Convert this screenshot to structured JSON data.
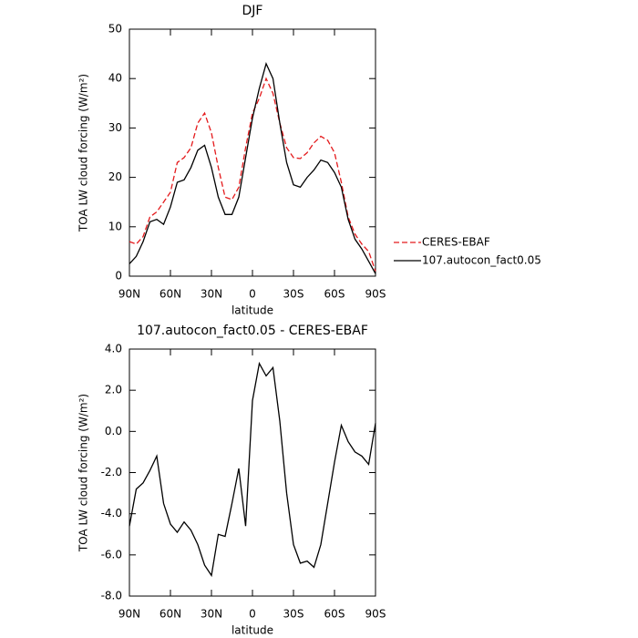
{
  "chart_data": [
    {
      "type": "line",
      "title": "DJF",
      "xlabel": "latitude",
      "ylabel": "TOA LW cloud forcing (W/m²)",
      "x": [
        90,
        85,
        80,
        75,
        70,
        65,
        60,
        55,
        50,
        45,
        40,
        35,
        30,
        25,
        20,
        15,
        10,
        5,
        0,
        -5,
        -10,
        -15,
        -20,
        -25,
        -30,
        -35,
        -40,
        -45,
        -50,
        -55,
        -60,
        -65,
        -70,
        -75,
        -80,
        -85,
        -90
      ],
      "xlim": [
        90,
        -90
      ],
      "xticks": [
        {
          "value": 90,
          "label": "90N"
        },
        {
          "value": 60,
          "label": "60N"
        },
        {
          "value": 30,
          "label": "30N"
        },
        0,
        {
          "value": -30,
          "label": "30S"
        },
        {
          "value": -60,
          "label": "60S"
        },
        {
          "value": -90,
          "label": "90S"
        }
      ],
      "ylim": [
        0,
        50
      ],
      "yticks": [
        0,
        10,
        20,
        30,
        40,
        50
      ],
      "legend": "right",
      "series": [
        {
          "name": "CERES-EBAF",
          "color": "#e41a1c",
          "dash": true,
          "values": [
            7,
            6.5,
            8,
            12,
            13,
            15,
            17,
            23,
            24,
            26,
            31,
            33,
            29,
            22,
            16,
            15.5,
            18,
            26,
            33,
            36,
            40,
            37,
            31,
            26,
            24,
            23.8,
            25,
            27,
            28.3,
            27.5,
            25,
            19,
            12,
            8.5,
            6.5,
            5,
            1
          ]
        },
        {
          "name": "107.autocon_fact0.05",
          "color": "#000000",
          "dash": false,
          "values": [
            2.5,
            4,
            7,
            11,
            11.5,
            10.5,
            14,
            19,
            19.5,
            22,
            25.5,
            26.5,
            22,
            16,
            12.5,
            12.5,
            16,
            24,
            32,
            38,
            43,
            40,
            31,
            23,
            18.5,
            18,
            20,
            21.5,
            23.5,
            23,
            21,
            18,
            11.5,
            7.5,
            5.5,
            3,
            0.5
          ]
        }
      ]
    },
    {
      "type": "line",
      "title": "107.autocon_fact0.05 - CERES-EBAF",
      "xlabel": "latitude",
      "ylabel": "TOA LW cloud forcing (W/m²)",
      "x": [
        90,
        85,
        80,
        75,
        70,
        65,
        60,
        55,
        50,
        45,
        40,
        35,
        30,
        25,
        20,
        15,
        10,
        5,
        0,
        -5,
        -10,
        -15,
        -20,
        -25,
        -30,
        -35,
        -40,
        -45,
        -50,
        -55,
        -60,
        -65,
        -70,
        -75,
        -80,
        -85,
        -90
      ],
      "xlim": [
        90,
        -90
      ],
      "xticks": [
        {
          "value": 90,
          "label": "90N"
        },
        {
          "value": 60,
          "label": "60N"
        },
        {
          "value": 30,
          "label": "30N"
        },
        0,
        {
          "value": -30,
          "label": "30S"
        },
        {
          "value": -60,
          "label": "60S"
        },
        {
          "value": -90,
          "label": "90S"
        }
      ],
      "ylim": [
        -8,
        4
      ],
      "yticks": [
        {
          "value": -8,
          "label": "-8.0"
        },
        {
          "value": -6,
          "label": "-6.0"
        },
        {
          "value": -4,
          "label": "-4.0"
        },
        {
          "value": -2,
          "label": "-2.0"
        },
        {
          "value": 0,
          "label": "0.0"
        },
        {
          "value": 2,
          "label": "2.0"
        },
        {
          "value": 4,
          "label": "4.0"
        }
      ],
      "color": "#000000",
      "values": [
        -4.6,
        -2.8,
        -2.5,
        -1.9,
        -1.2,
        -3.5,
        -4.5,
        -4.9,
        -4.4,
        -4.8,
        -5.5,
        -6.5,
        -7.0,
        -5.0,
        -5.1,
        -3.5,
        -1.8,
        -4.6,
        1.5,
        3.3,
        2.7,
        3.1,
        0.5,
        -3.0,
        -5.5,
        -6.4,
        -6.3,
        -6.6,
        -5.5,
        -3.5,
        -1.5,
        0.3,
        -0.5,
        -1.0,
        -1.2,
        -1.6,
        0.4
      ]
    }
  ]
}
